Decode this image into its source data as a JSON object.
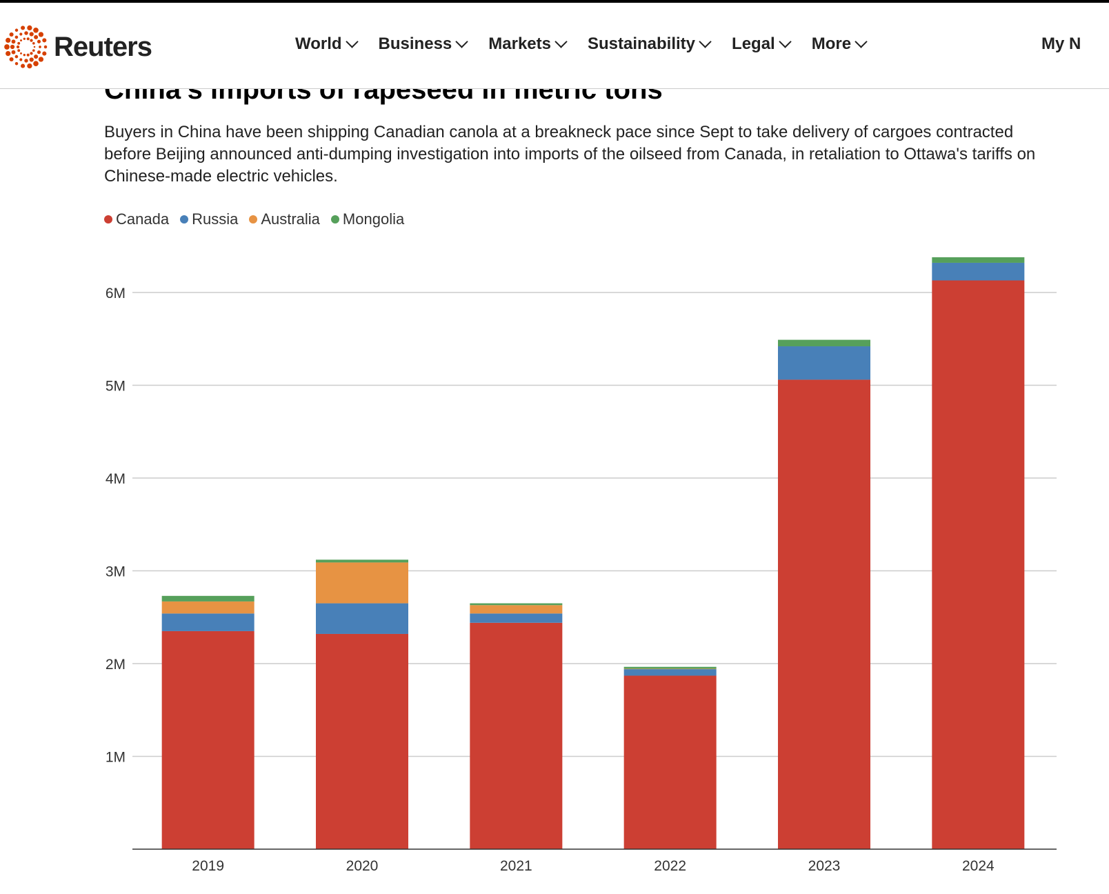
{
  "header": {
    "logo_text": "Reuters",
    "brand_color": "#d64000",
    "nav": [
      "World",
      "Business",
      "Markets",
      "Sustainability",
      "Legal",
      "More"
    ],
    "my_news": "My N"
  },
  "article": {
    "title": "China's imports of rapeseed in metric tons",
    "description": "Buyers in China have been shipping Canadian canola at a breakneck pace since Sept to take delivery of cargoes contracted before Beijing announced anti-dumping investigation into imports of the oilseed from Canada, in retaliation to Ottawa's tariffs on Chinese-made electric vehicles."
  },
  "chart_data": {
    "type": "bar",
    "stacked": true,
    "title": "China's imports of rapeseed in metric tons",
    "categories": [
      "2019",
      "2020",
      "2021",
      "2022",
      "2023",
      "2024"
    ],
    "series": [
      {
        "name": "Canada",
        "color": "#cc3f33",
        "values": [
          2350000,
          2320000,
          2440000,
          1870000,
          5060000,
          6130000
        ]
      },
      {
        "name": "Russia",
        "color": "#4880b8",
        "values": [
          190000,
          330000,
          100000,
          70000,
          360000,
          190000
        ]
      },
      {
        "name": "Australia",
        "color": "#e79343",
        "values": [
          130000,
          440000,
          90000,
          5000,
          0,
          0
        ]
      },
      {
        "name": "Mongolia",
        "color": "#56a05b",
        "values": [
          60000,
          30000,
          20000,
          20000,
          70000,
          60000
        ]
      }
    ],
    "ylim": [
      0,
      6000000
    ],
    "yticks": [
      1000000,
      2000000,
      3000000,
      4000000,
      5000000,
      6000000
    ],
    "ytick_labels": [
      "1M",
      "2M",
      "3M",
      "4M",
      "5M",
      "6M"
    ],
    "grid": true,
    "legend": "top-left"
  }
}
